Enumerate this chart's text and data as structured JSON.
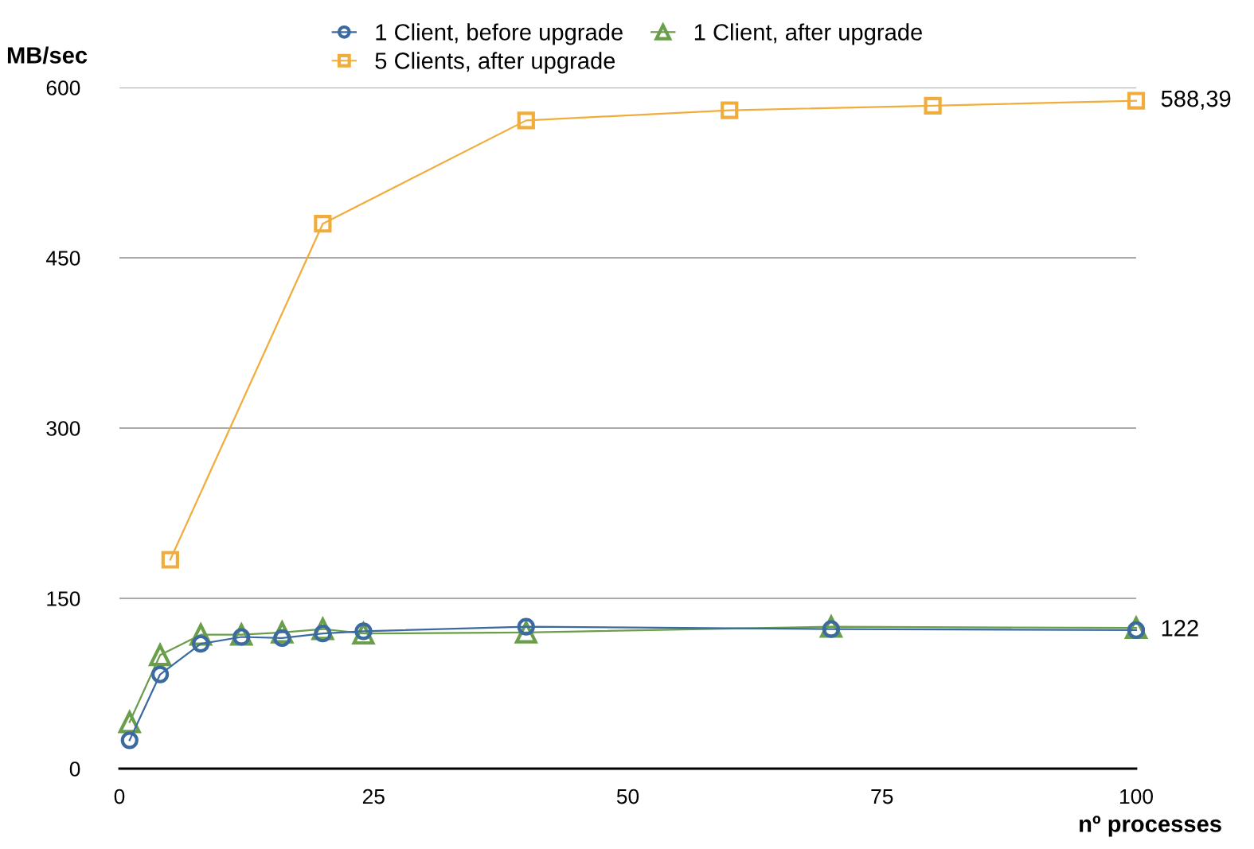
{
  "chart_data": {
    "type": "line",
    "xlabel": "nº processes",
    "ylabel": "MB/sec",
    "xlim": [
      0,
      100
    ],
    "xticks": [
      0,
      25,
      50,
      75,
      100
    ],
    "ylim": [
      0,
      600
    ],
    "yticks": [
      0,
      150,
      300,
      450,
      600
    ],
    "grid": "y",
    "legend": "top",
    "line_style": "solid",
    "series": [
      {
        "name": "1 Client, before upgrade",
        "color": "#3b6aa0",
        "marker": "circle",
        "x": [
          1,
          4,
          8,
          12,
          16,
          20,
          24,
          40,
          70,
          100
        ],
        "values": [
          25,
          83,
          110,
          116,
          115,
          119,
          121,
          125,
          123,
          122
        ]
      },
      {
        "name": "1 Client, after upgrade",
        "color": "#6a9e4a",
        "marker": "triangle",
        "x": [
          1,
          4,
          8,
          12,
          16,
          20,
          24,
          40,
          70,
          100
        ],
        "values": [
          41,
          100,
          118,
          118,
          120,
          123,
          119,
          120,
          125,
          124
        ]
      },
      {
        "name": "5 Clients, after upgrade",
        "color": "#f0ad3c",
        "marker": "square",
        "x": [
          5,
          20,
          40,
          60,
          80,
          100
        ],
        "values": [
          184,
          480,
          571,
          580,
          584,
          588.39
        ]
      }
    ],
    "annotations": [
      {
        "text": "588,39",
        "x": 100,
        "y": 588.39
      },
      {
        "text": "122",
        "x": 100,
        "y": 122
      }
    ]
  }
}
